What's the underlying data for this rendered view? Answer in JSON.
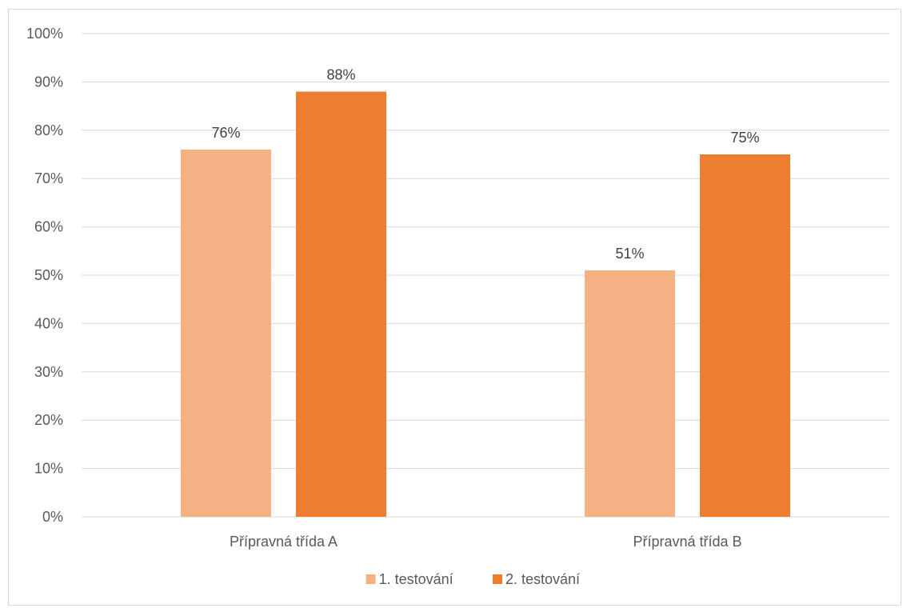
{
  "chart_data": {
    "type": "bar",
    "categories": [
      "Přípravná třída A",
      "Přípravná třída B"
    ],
    "series": [
      {
        "name": "1. testování",
        "values": [
          76,
          51
        ],
        "color": "#F4B183"
      },
      {
        "name": "2. testování",
        "values": [
          88,
          75
        ],
        "color": "#ED7D31"
      }
    ],
    "data_labels": [
      [
        "76%",
        "51%"
      ],
      [
        "88%",
        "75%"
      ]
    ],
    "y_ticks": [
      "0%",
      "10%",
      "20%",
      "30%",
      "40%",
      "50%",
      "60%",
      "70%",
      "80%",
      "90%",
      "100%"
    ],
    "ylim": [
      0,
      100
    ],
    "title": "",
    "xlabel": "",
    "ylabel": "",
    "grid": true,
    "legend_position": "bottom",
    "gridline_color": "#d9d9d9"
  }
}
